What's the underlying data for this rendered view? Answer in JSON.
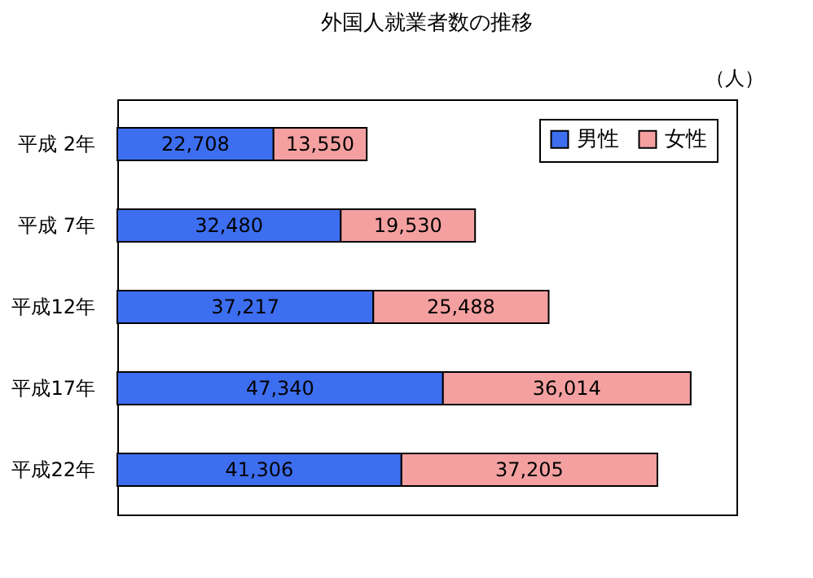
{
  "chart_data": {
    "type": "bar",
    "orientation": "horizontal",
    "stacked": true,
    "title": "外国人就業者数の推移",
    "annotations": [
      "（人）"
    ],
    "categories": [
      "平成 2年",
      "平成 7年",
      "平成12年",
      "平成17年",
      "平成22年"
    ],
    "series": [
      {
        "name": "男性",
        "color": "#3d6ef0",
        "values": [
          22708,
          32480,
          37217,
          47340,
          41306
        ],
        "value_labels": [
          "22,708",
          "32,480",
          "37,217",
          "47,340",
          "41,306"
        ]
      },
      {
        "name": "女性",
        "color": "#f4a0a0",
        "values": [
          13550,
          19530,
          25488,
          36014,
          37205
        ],
        "value_labels": [
          "13,550",
          "19,530",
          "25,488",
          "36,014",
          "37,205"
        ]
      }
    ],
    "legend": "top right"
  }
}
